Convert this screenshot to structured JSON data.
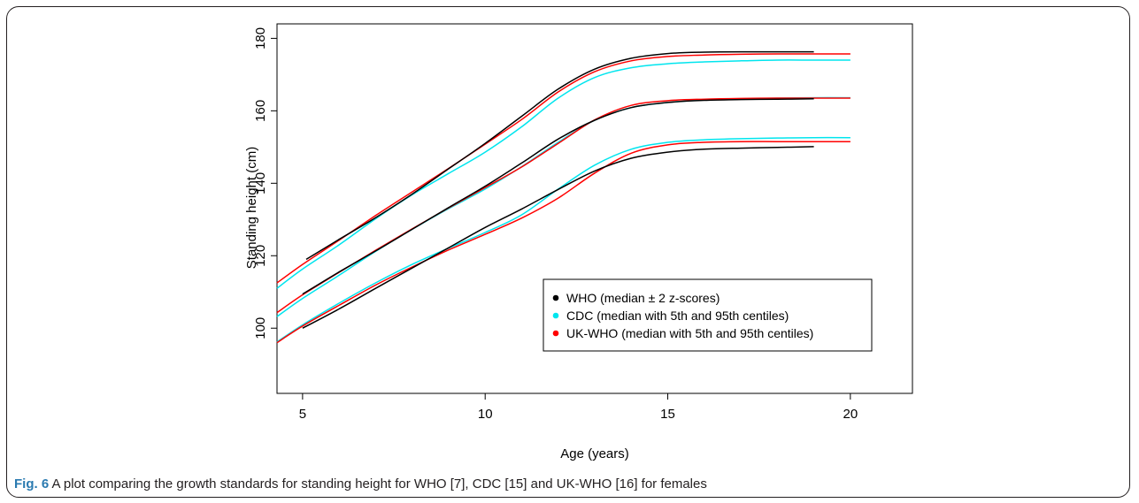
{
  "caption": {
    "label": "Fig. 6",
    "text": "A plot comparing the growth standards for standing height for WHO [7], CDC [15] and UK-WHO [16] for females"
  },
  "chart_data": {
    "type": "line",
    "title": "",
    "xlabel": "Age (years)",
    "ylabel": "Standing height (cm)",
    "xlim": [
      4.3,
      21.7
    ],
    "ylim": [
      82,
      184
    ],
    "xticks": [
      5,
      10,
      15,
      20
    ],
    "yticks": [
      100,
      120,
      140,
      160,
      180
    ],
    "grid": false,
    "legend_position": "center-right",
    "colors": {
      "WHO": "#000000",
      "CDC": "#00e5ee",
      "UK-WHO": "#ff0000"
    },
    "legend": [
      {
        "label": "WHO (median ± 2 z-scores)",
        "color": "#000000"
      },
      {
        "label": "CDC (median with 5th and 95th centiles)",
        "color": "#00e5ee"
      },
      {
        "label": "UK-WHO (median with 5th and 95th centiles)",
        "color": "#ff0000"
      }
    ],
    "series": [
      {
        "group": "WHO",
        "curve": "+2 z-score",
        "color": "#000000",
        "points": [
          [
            5.1,
            119
          ],
          [
            6,
            124.5
          ],
          [
            7,
            130.5
          ],
          [
            8,
            137
          ],
          [
            9,
            144
          ],
          [
            10,
            151
          ],
          [
            11,
            158.5
          ],
          [
            12,
            166
          ],
          [
            13,
            171.5
          ],
          [
            14,
            174.5
          ],
          [
            15,
            175.8
          ],
          [
            16,
            176.2
          ],
          [
            17,
            176.3
          ],
          [
            18,
            176.3
          ],
          [
            19,
            176.3
          ]
        ]
      },
      {
        "group": "WHO",
        "curve": "median",
        "color": "#000000",
        "points": [
          [
            5,
            109.4
          ],
          [
            6,
            115.5
          ],
          [
            7,
            121.3
          ],
          [
            8,
            127.3
          ],
          [
            9,
            133.3
          ],
          [
            10,
            139.2
          ],
          [
            11,
            145.6
          ],
          [
            12,
            152.2
          ],
          [
            13,
            157.4
          ],
          [
            14,
            160.9
          ],
          [
            15,
            162.3
          ],
          [
            16,
            162.9
          ],
          [
            17,
            163.1
          ],
          [
            18,
            163.2
          ],
          [
            19,
            163.3
          ]
        ]
      },
      {
        "group": "WHO",
        "curve": "-2 z-score",
        "color": "#000000",
        "points": [
          [
            5,
            100
          ],
          [
            6,
            105.3
          ],
          [
            7,
            111
          ],
          [
            8,
            116.6
          ],
          [
            9,
            122.2
          ],
          [
            10,
            127.8
          ],
          [
            11,
            132.9
          ],
          [
            12,
            138.3
          ],
          [
            13,
            143.4
          ],
          [
            14,
            146.9
          ],
          [
            15,
            148.6
          ],
          [
            16,
            149.4
          ],
          [
            17,
            149.7
          ],
          [
            18,
            149.9
          ],
          [
            19,
            150.1
          ]
        ]
      },
      {
        "group": "CDC",
        "curve": "95th centile",
        "color": "#00e5ee",
        "points": [
          [
            4.3,
            111
          ],
          [
            5,
            116.3
          ],
          [
            6,
            123
          ],
          [
            7,
            130.2
          ],
          [
            8,
            136.8
          ],
          [
            9,
            142.7
          ],
          [
            10,
            148.6
          ],
          [
            11,
            155.6
          ],
          [
            12,
            163.5
          ],
          [
            13,
            169.2
          ],
          [
            14,
            171.9
          ],
          [
            15,
            173
          ],
          [
            16,
            173.5
          ],
          [
            17,
            173.8
          ],
          [
            18,
            174
          ],
          [
            19,
            174
          ],
          [
            20,
            174
          ]
        ]
      },
      {
        "group": "CDC",
        "curve": "median",
        "color": "#00e5ee",
        "points": [
          [
            4.3,
            103.2
          ],
          [
            5,
            108.2
          ],
          [
            6,
            114.6
          ],
          [
            7,
            121.2
          ],
          [
            8,
            127.3
          ],
          [
            9,
            133
          ],
          [
            10,
            138.4
          ],
          [
            11,
            144.6
          ],
          [
            12,
            151.3
          ],
          [
            13,
            157.4
          ],
          [
            14,
            160.9
          ],
          [
            15,
            162.3
          ],
          [
            16,
            163
          ],
          [
            17,
            163.3
          ],
          [
            18,
            163.5
          ],
          [
            19,
            163.6
          ],
          [
            20,
            163.6
          ]
        ]
      },
      {
        "group": "CDC",
        "curve": "5th centile",
        "color": "#00e5ee",
        "points": [
          [
            4.3,
            96.2
          ],
          [
            5,
            100.9
          ],
          [
            6,
            106.9
          ],
          [
            7,
            112.5
          ],
          [
            8,
            117.6
          ],
          [
            9,
            122.1
          ],
          [
            10,
            126.4
          ],
          [
            11,
            131.3
          ],
          [
            12,
            138.4
          ],
          [
            13,
            145
          ],
          [
            14,
            149.4
          ],
          [
            15,
            151.3
          ],
          [
            16,
            152
          ],
          [
            17,
            152.3
          ],
          [
            18,
            152.5
          ],
          [
            19,
            152.6
          ],
          [
            20,
            152.6
          ]
        ]
      },
      {
        "group": "UK-WHO",
        "curve": "95th centile",
        "color": "#ff0000",
        "points": [
          [
            4.3,
            112.5
          ],
          [
            5,
            117.6
          ],
          [
            6,
            124.3
          ],
          [
            7,
            131.1
          ],
          [
            8,
            137.6
          ],
          [
            9,
            144.1
          ],
          [
            10,
            150.8
          ],
          [
            11,
            157.6
          ],
          [
            12,
            165.2
          ],
          [
            13,
            170.8
          ],
          [
            14,
            173.8
          ],
          [
            15,
            175
          ],
          [
            16,
            175.4
          ],
          [
            17,
            175.6
          ],
          [
            18,
            175.7
          ],
          [
            19,
            175.7
          ],
          [
            20,
            175.7
          ]
        ]
      },
      {
        "group": "UK-WHO",
        "curve": "median",
        "color": "#ff0000",
        "points": [
          [
            4.3,
            104.3
          ],
          [
            5,
            109.2
          ],
          [
            6,
            115.4
          ],
          [
            7,
            121.5
          ],
          [
            8,
            127.4
          ],
          [
            9,
            133.2
          ],
          [
            10,
            138.8
          ],
          [
            11,
            144.5
          ],
          [
            12,
            151
          ],
          [
            13,
            157.5
          ],
          [
            14,
            161.5
          ],
          [
            15,
            162.8
          ],
          [
            16,
            163.2
          ],
          [
            17,
            163.4
          ],
          [
            18,
            163.5
          ],
          [
            19,
            163.5
          ],
          [
            20,
            163.5
          ]
        ]
      },
      {
        "group": "UK-WHO",
        "curve": "5th centile",
        "color": "#ff0000",
        "points": [
          [
            4.3,
            96
          ],
          [
            5,
            100.6
          ],
          [
            6,
            106.3
          ],
          [
            7,
            111.9
          ],
          [
            8,
            116.9
          ],
          [
            9,
            121.6
          ],
          [
            10,
            125.9
          ],
          [
            11,
            130.4
          ],
          [
            12,
            135.9
          ],
          [
            13,
            142.8
          ],
          [
            14,
            148.3
          ],
          [
            15,
            150.6
          ],
          [
            16,
            151.3
          ],
          [
            17,
            151.5
          ],
          [
            18,
            151.5
          ],
          [
            19,
            151.5
          ],
          [
            20,
            151.5
          ]
        ]
      }
    ]
  }
}
